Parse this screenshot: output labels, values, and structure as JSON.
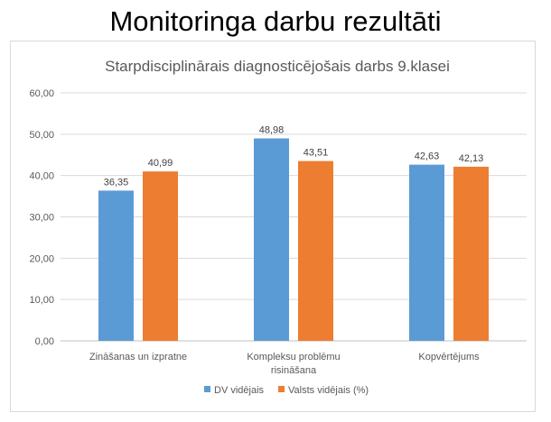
{
  "page": {
    "title": "Monitoringa darbu rezultāti"
  },
  "chart_data": {
    "type": "bar",
    "title": "Starpdisciplinārais diagnosticējošais darbs 9.klasei",
    "categories": [
      [
        "Zināšanas un izpratne"
      ],
      [
        "Kompleksu problēmu",
        "risināšana"
      ],
      [
        "Kopvērtējums"
      ]
    ],
    "series": [
      {
        "name": "DV vidējais",
        "color": "#5b9bd5",
        "values": [
          36.35,
          48.98,
          42.63
        ],
        "labels": [
          "36,35",
          "48,98",
          "42,63"
        ]
      },
      {
        "name": "Valsts vidējais (%)",
        "color": "#ed7d31",
        "values": [
          40.99,
          43.51,
          42.13
        ],
        "labels": [
          "40,99",
          "43,51",
          "42,13"
        ]
      }
    ],
    "ylim": [
      0,
      60
    ],
    "yticks": [
      "0,00",
      "10,00",
      "20,00",
      "30,00",
      "40,00",
      "50,00",
      "60,00"
    ],
    "grid": true,
    "legend": "bottom"
  }
}
